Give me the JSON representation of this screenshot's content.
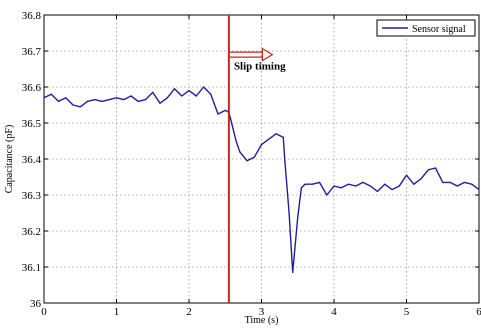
{
  "chart_data": {
    "type": "line",
    "title": "",
    "xlabel": "Time (s)",
    "ylabel": "Capacitance (pF)",
    "xlim": [
      0,
      6
    ],
    "ylim": [
      36.0,
      36.8
    ],
    "x_ticks": [
      0,
      1,
      2,
      3,
      4,
      5,
      6
    ],
    "x_tick_labels": [
      "0",
      "1",
      "2",
      "3",
      "4",
      "5",
      "6"
    ],
    "y_ticks": [
      36.0,
      36.1,
      36.2,
      36.3,
      36.4,
      36.5,
      36.6,
      36.7,
      36.8
    ],
    "y_tick_labels": [
      "36",
      "36.1",
      "36.2",
      "36.3",
      "36.4",
      "36.5",
      "36.6",
      "36.7",
      "36.8"
    ],
    "grid": true,
    "legend_position": "top-right",
    "series": [
      {
        "name": "Sensor signal",
        "color": "#1f1f9e",
        "x": [
          0,
          0.1,
          0.2,
          0.3,
          0.4,
          0.5,
          0.6,
          0.7,
          0.8,
          0.9,
          1.0,
          1.1,
          1.2,
          1.3,
          1.4,
          1.5,
          1.6,
          1.7,
          1.8,
          1.9,
          2.0,
          2.1,
          2.2,
          2.3,
          2.4,
          2.5,
          2.55,
          2.6,
          2.65,
          2.7,
          2.8,
          2.9,
          3.0,
          3.1,
          3.2,
          3.3,
          3.32,
          3.38,
          3.43,
          3.5,
          3.55,
          3.6,
          3.7,
          3.8,
          3.9,
          4.0,
          4.1,
          4.2,
          4.3,
          4.4,
          4.5,
          4.6,
          4.7,
          4.8,
          4.9,
          5.0,
          5.1,
          5.2,
          5.3,
          5.4,
          5.5,
          5.6,
          5.7,
          5.8,
          5.9,
          6.0
        ],
        "values": [
          36.57,
          36.58,
          36.56,
          36.57,
          36.55,
          36.545,
          36.56,
          36.565,
          36.56,
          36.565,
          36.57,
          36.565,
          36.575,
          36.56,
          36.565,
          36.585,
          36.555,
          36.57,
          36.595,
          36.575,
          36.59,
          36.575,
          36.6,
          36.58,
          36.525,
          36.535,
          36.53,
          36.49,
          36.45,
          36.42,
          36.395,
          36.405,
          36.44,
          36.455,
          36.47,
          36.46,
          36.4,
          36.25,
          36.085,
          36.24,
          36.32,
          36.33,
          36.33,
          36.335,
          36.3,
          36.325,
          36.32,
          36.33,
          36.325,
          36.335,
          36.325,
          36.31,
          36.33,
          36.315,
          36.325,
          36.355,
          36.33,
          36.345,
          36.37,
          36.375,
          36.335,
          36.335,
          36.325,
          36.335,
          36.33,
          36.315
        ]
      }
    ],
    "annotations": [
      {
        "type": "vertical-line",
        "x": 2.55,
        "color": "#cc2222"
      },
      {
        "type": "arrow",
        "x_start": 2.55,
        "x_end": 3.15,
        "y": 36.69,
        "color": "#cc2222"
      },
      {
        "type": "text",
        "text": "Slip timing",
        "x": 2.62,
        "y": 36.66,
        "color": "#cc2222"
      }
    ]
  }
}
